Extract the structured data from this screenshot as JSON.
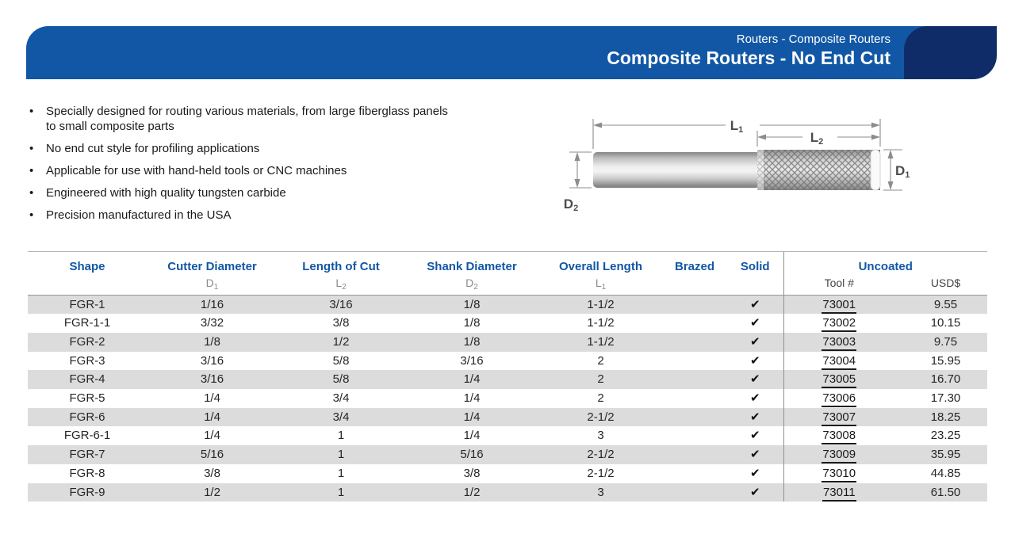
{
  "header": {
    "breadcrumb": "Routers - Composite Routers",
    "title": "Composite Routers - No End Cut"
  },
  "features": [
    "Specially designed for routing various materials, from large fiberglass panels to small composite parts",
    "No end cut style for profiling applications",
    "Applicable for use with hand-held tools or CNC machines",
    "Engineered with high quality tungsten carbide",
    "Precision manufactured in the USA"
  ],
  "diagram": {
    "l1": {
      "base": "L",
      "sub": "1"
    },
    "l2": {
      "base": "L",
      "sub": "2"
    },
    "d1": {
      "base": "D",
      "sub": "1"
    },
    "d2": {
      "base": "D",
      "sub": "2"
    }
  },
  "table": {
    "columns": {
      "shape": {
        "label": "Shape"
      },
      "cutter": {
        "label": "Cutter Diameter",
        "base": "D",
        "sub": "1"
      },
      "length": {
        "label": "Length of Cut",
        "base": "L",
        "sub": "2"
      },
      "shank": {
        "label": "Shank Diameter",
        "base": "D",
        "sub": "2"
      },
      "overall": {
        "label": "Overall Length",
        "base": "L",
        "sub": "1"
      },
      "brazed": {
        "label": "Brazed"
      },
      "solid": {
        "label": "Solid"
      }
    },
    "uncoated_group": {
      "label": "Uncoated",
      "tool_label": "Tool #",
      "price_label": "USD$"
    },
    "check_glyph": "✔",
    "rows": [
      {
        "shape": "FGR-1",
        "cutter": "1/16",
        "length": "3/16",
        "shank": "1/8",
        "overall": "1-1/2",
        "brazed": false,
        "solid": true,
        "tool": "73001",
        "usd": "9.55"
      },
      {
        "shape": "FGR-1-1",
        "cutter": "3/32",
        "length": "3/8",
        "shank": "1/8",
        "overall": "1-1/2",
        "brazed": false,
        "solid": true,
        "tool": "73002",
        "usd": "10.15"
      },
      {
        "shape": "FGR-2",
        "cutter": "1/8",
        "length": "1/2",
        "shank": "1/8",
        "overall": "1-1/2",
        "brazed": false,
        "solid": true,
        "tool": "73003",
        "usd": "9.75"
      },
      {
        "shape": "FGR-3",
        "cutter": "3/16",
        "length": "5/8",
        "shank": "3/16",
        "overall": "2",
        "brazed": false,
        "solid": true,
        "tool": "73004",
        "usd": "15.95"
      },
      {
        "shape": "FGR-4",
        "cutter": "3/16",
        "length": "5/8",
        "shank": "1/4",
        "overall": "2",
        "brazed": false,
        "solid": true,
        "tool": "73005",
        "usd": "16.70"
      },
      {
        "shape": "FGR-5",
        "cutter": "1/4",
        "length": "3/4",
        "shank": "1/4",
        "overall": "2",
        "brazed": false,
        "solid": true,
        "tool": "73006",
        "usd": "17.30"
      },
      {
        "shape": "FGR-6",
        "cutter": "1/4",
        "length": "3/4",
        "shank": "1/4",
        "overall": "2-1/2",
        "brazed": false,
        "solid": true,
        "tool": "73007",
        "usd": "18.25"
      },
      {
        "shape": "FGR-6-1",
        "cutter": "1/4",
        "length": "1",
        "shank": "1/4",
        "overall": "3",
        "brazed": false,
        "solid": true,
        "tool": "73008",
        "usd": "23.25"
      },
      {
        "shape": "FGR-7",
        "cutter": "5/16",
        "length": "1",
        "shank": "5/16",
        "overall": "2-1/2",
        "brazed": false,
        "solid": true,
        "tool": "73009",
        "usd": "35.95"
      },
      {
        "shape": "FGR-8",
        "cutter": "3/8",
        "length": "1",
        "shank": "3/8",
        "overall": "2-1/2",
        "brazed": false,
        "solid": true,
        "tool": "73010",
        "usd": "44.85"
      },
      {
        "shape": "FGR-9",
        "cutter": "1/2",
        "length": "1",
        "shank": "1/2",
        "overall": "3",
        "brazed": false,
        "solid": true,
        "tool": "73011",
        "usd": "61.50"
      }
    ]
  },
  "colors": {
    "banner_blue": "#1257A5",
    "banner_navy": "#102C68",
    "header_text_blue": "#1257A5",
    "row_shade": "#DCDCDC",
    "check_black": "#111111"
  }
}
